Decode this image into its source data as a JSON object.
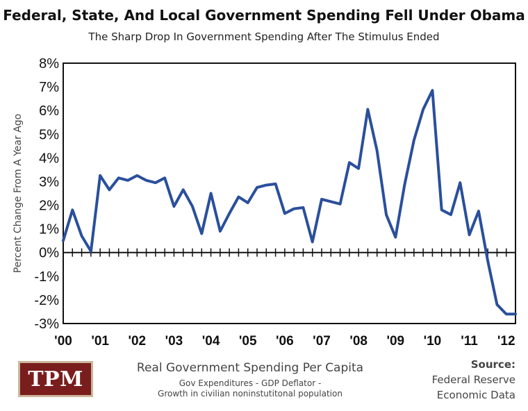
{
  "chart_data": {
    "type": "line",
    "title": "Federal, State, And Local Government Spending Fell Under Obama",
    "subtitle": "The Sharp Drop In Government Spending After The Stimulus Ended",
    "ylabel": "Percent Change From A Year Ago",
    "xlabel": "",
    "ylim": [
      -3,
      8
    ],
    "xlim": [
      2000,
      2012.25
    ],
    "yticks": [
      "8%",
      "7%",
      "6%",
      "5%",
      "4%",
      "3%",
      "2%",
      "1%",
      "0%",
      "-1%",
      "-2%",
      "-3%"
    ],
    "xticks": [
      "'00",
      "'01",
      "'02",
      "'03",
      "'04",
      "'05",
      "'06",
      "'07",
      "'08",
      "'09",
      "'10",
      "'11",
      "'12"
    ],
    "grid": false,
    "series": [
      {
        "color": "#2a4f9c",
        "x": [
          2000.0,
          2000.25,
          2000.5,
          2000.75,
          2001.0,
          2001.25,
          2001.5,
          2001.75,
          2002.0,
          2002.25,
          2002.5,
          2002.75,
          2003.0,
          2003.25,
          2003.5,
          2003.75,
          2004.0,
          2004.25,
          2004.5,
          2004.75,
          2005.0,
          2005.25,
          2005.5,
          2005.75,
          2006.0,
          2006.25,
          2006.5,
          2006.75,
          2007.0,
          2007.25,
          2007.5,
          2007.75,
          2008.0,
          2008.25,
          2008.5,
          2008.75,
          2009.0,
          2009.25,
          2009.5,
          2009.75,
          2010.0,
          2010.25,
          2010.5,
          2010.75,
          2011.0,
          2011.25,
          2011.5,
          2011.75,
          2012.0,
          2012.25
        ],
        "values": [
          0.5,
          1.8,
          0.7,
          0.05,
          3.25,
          2.65,
          3.15,
          3.05,
          3.25,
          3.05,
          2.95,
          3.15,
          1.95,
          2.65,
          1.95,
          0.8,
          2.5,
          0.9,
          1.65,
          2.35,
          2.1,
          2.75,
          2.85,
          2.9,
          1.65,
          1.85,
          1.9,
          0.45,
          2.25,
          2.15,
          2.05,
          3.8,
          3.55,
          6.05,
          4.3,
          1.6,
          0.65,
          2.9,
          4.75,
          6.05,
          6.85,
          1.8,
          1.6,
          2.95,
          0.75,
          1.75,
          -0.35,
          -2.2,
          -2.6,
          -2.6
        ]
      }
    ]
  },
  "footer": {
    "main": "Real Government Spending Per Capita",
    "sub1": "Gov Expenditures - GDP Deflator -",
    "sub2": "Growth in civilian noninstutitonal population"
  },
  "source": {
    "label": "Source:",
    "line1": "Federal Reserve",
    "line2": "Economic Data"
  },
  "logo": {
    "text": "TPM"
  }
}
